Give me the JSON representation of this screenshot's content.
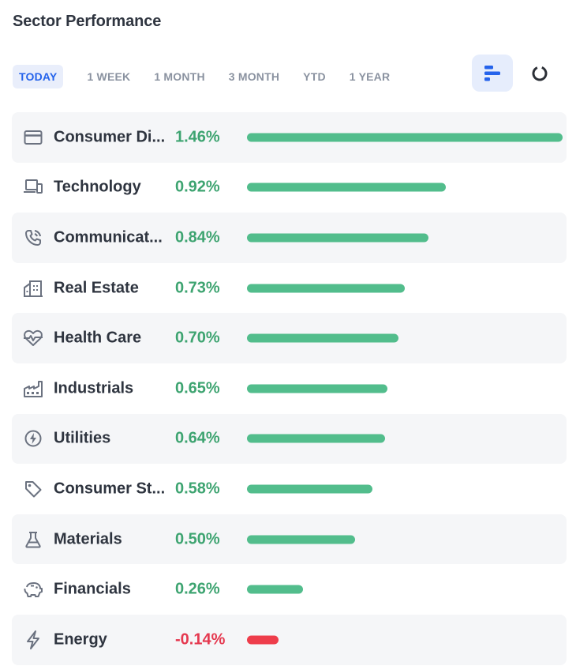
{
  "title": "Sector Performance",
  "tabs": [
    {
      "label": "TODAY",
      "active": true
    },
    {
      "label": "1 WEEK",
      "active": false
    },
    {
      "label": "1 MONTH",
      "active": false
    },
    {
      "label": "3 MONTH",
      "active": false
    },
    {
      "label": "YTD",
      "active": false
    },
    {
      "label": "1 YEAR",
      "active": false
    }
  ],
  "view_toggle": {
    "selected": "bar-view",
    "options": [
      "bar-view",
      "donut-view"
    ]
  },
  "colors": {
    "positive": "#3ea471",
    "positive_bar": "#52bd8c",
    "negative": "#e5384f",
    "negative_bar": "#ee3d4b",
    "icon": "#6b7280"
  },
  "sectors": [
    {
      "name": "Consumer Discretionary",
      "display": "Consumer Di...",
      "value": 1.46,
      "value_text": "1.46%",
      "icon": "credit-card-icon"
    },
    {
      "name": "Technology",
      "display": "Technology",
      "value": 0.92,
      "value_text": "0.92%",
      "icon": "devices-icon"
    },
    {
      "name": "Communication Services",
      "display": "Communicat...",
      "value": 0.84,
      "value_text": "0.84%",
      "icon": "phone-icon"
    },
    {
      "name": "Real Estate",
      "display": "Real Estate",
      "value": 0.73,
      "value_text": "0.73%",
      "icon": "buildings-icon"
    },
    {
      "name": "Health Care",
      "display": "Health Care",
      "value": 0.7,
      "value_text": "0.70%",
      "icon": "heartbeat-icon"
    },
    {
      "name": "Industrials",
      "display": "Industrials",
      "value": 0.65,
      "value_text": "0.65%",
      "icon": "factory-icon"
    },
    {
      "name": "Utilities",
      "display": "Utilities",
      "value": 0.64,
      "value_text": "0.64%",
      "icon": "flame-icon"
    },
    {
      "name": "Consumer Staples",
      "display": "Consumer St...",
      "value": 0.58,
      "value_text": "0.58%",
      "icon": "tag-icon"
    },
    {
      "name": "Materials",
      "display": "Materials",
      "value": 0.5,
      "value_text": "0.50%",
      "icon": "flask-icon"
    },
    {
      "name": "Financials",
      "display": "Financials",
      "value": 0.26,
      "value_text": "0.26%",
      "icon": "piggy-bank-icon"
    },
    {
      "name": "Energy",
      "display": "Energy",
      "value": -0.14,
      "value_text": "-0.14%",
      "icon": "lightning-icon"
    }
  ]
}
